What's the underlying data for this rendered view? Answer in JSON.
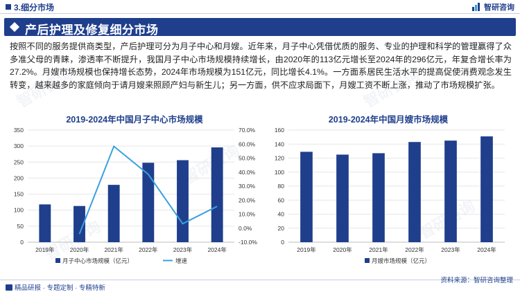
{
  "header": {
    "section": "3.细分市场",
    "brand": "智研咨询"
  },
  "banner": {
    "title": "产后护理及修复细分市场"
  },
  "intro": "按照不同的服务提供商类型，产后护理可分为月子中心和月嫂。近年来，月子中心凭借优质的服务、专业的护理和科学的管理赢得了众多准父母的青睐，渗透率不断提升，我国月子中心市场规模持续增长，由2020年的113亿元增长至2024年的296亿元，年复合增长率为27.2%。月嫂市场规模也保持增长态势，2024年市场规模为151亿元，同比增长4.1%。一方面系居民生活水平的提高促使消费观念发生转变，越来越多的家庭倾向于请月嫂来照顾产妇与新生儿；另一方面，供不应求局面下，月嫂工资不断上涨，推动了市场规模扩张。",
  "footer": {
    "left": "精品研报 · 专题定制 · 专精特新",
    "source": "资料来源：智研咨询整理"
  },
  "watermark": "智研咨询",
  "colors": {
    "brand": "#1f3f8c",
    "bar": "#1f3f8c",
    "line": "#3aa0e0"
  },
  "chart_data": [
    {
      "type": "bar",
      "title": "2019-2024年中国月子中心市场规模",
      "categories": [
        "2019年",
        "2020年",
        "2021年",
        "2022年",
        "2023年",
        "2024年"
      ],
      "series": [
        {
          "name": "月子中心市场规模（亿元）",
          "type": "bar",
          "axis": "left",
          "values": [
            118,
            113,
            179,
            248,
            256,
            296
          ]
        },
        {
          "name": "增速",
          "type": "line",
          "axis": "right",
          "values": [
            null,
            -4.2,
            58.4,
            38.5,
            3.2,
            15.6
          ]
        }
      ],
      "ylim": [
        0,
        350
      ],
      "yticks": [
        "0",
        "50",
        "100",
        "150",
        "200",
        "250",
        "300",
        "350"
      ],
      "y2lim": [
        -10,
        70
      ],
      "y2ticks": [
        "-10.0%",
        "0.0%",
        "10.0%",
        "20.0%",
        "30.0%",
        "40.0%",
        "50.0%",
        "60.0%",
        "70.0%"
      ],
      "grid": true,
      "legend": "bottom"
    },
    {
      "type": "bar",
      "title": "2019-2024年中国月嫂市场规模",
      "categories": [
        "2019年",
        "2020年",
        "2021年",
        "2022年",
        "2023年",
        "2024年"
      ],
      "series": [
        {
          "name": "月嫂市场规模（亿元）",
          "type": "bar",
          "axis": "left",
          "values": [
            129,
            125,
            127,
            143,
            145,
            151
          ]
        }
      ],
      "ylim": [
        0,
        160
      ],
      "yticks": [
        "0",
        "20",
        "40",
        "60",
        "80",
        "100",
        "120",
        "140",
        "160"
      ],
      "grid": true,
      "legend": "bottom"
    }
  ]
}
